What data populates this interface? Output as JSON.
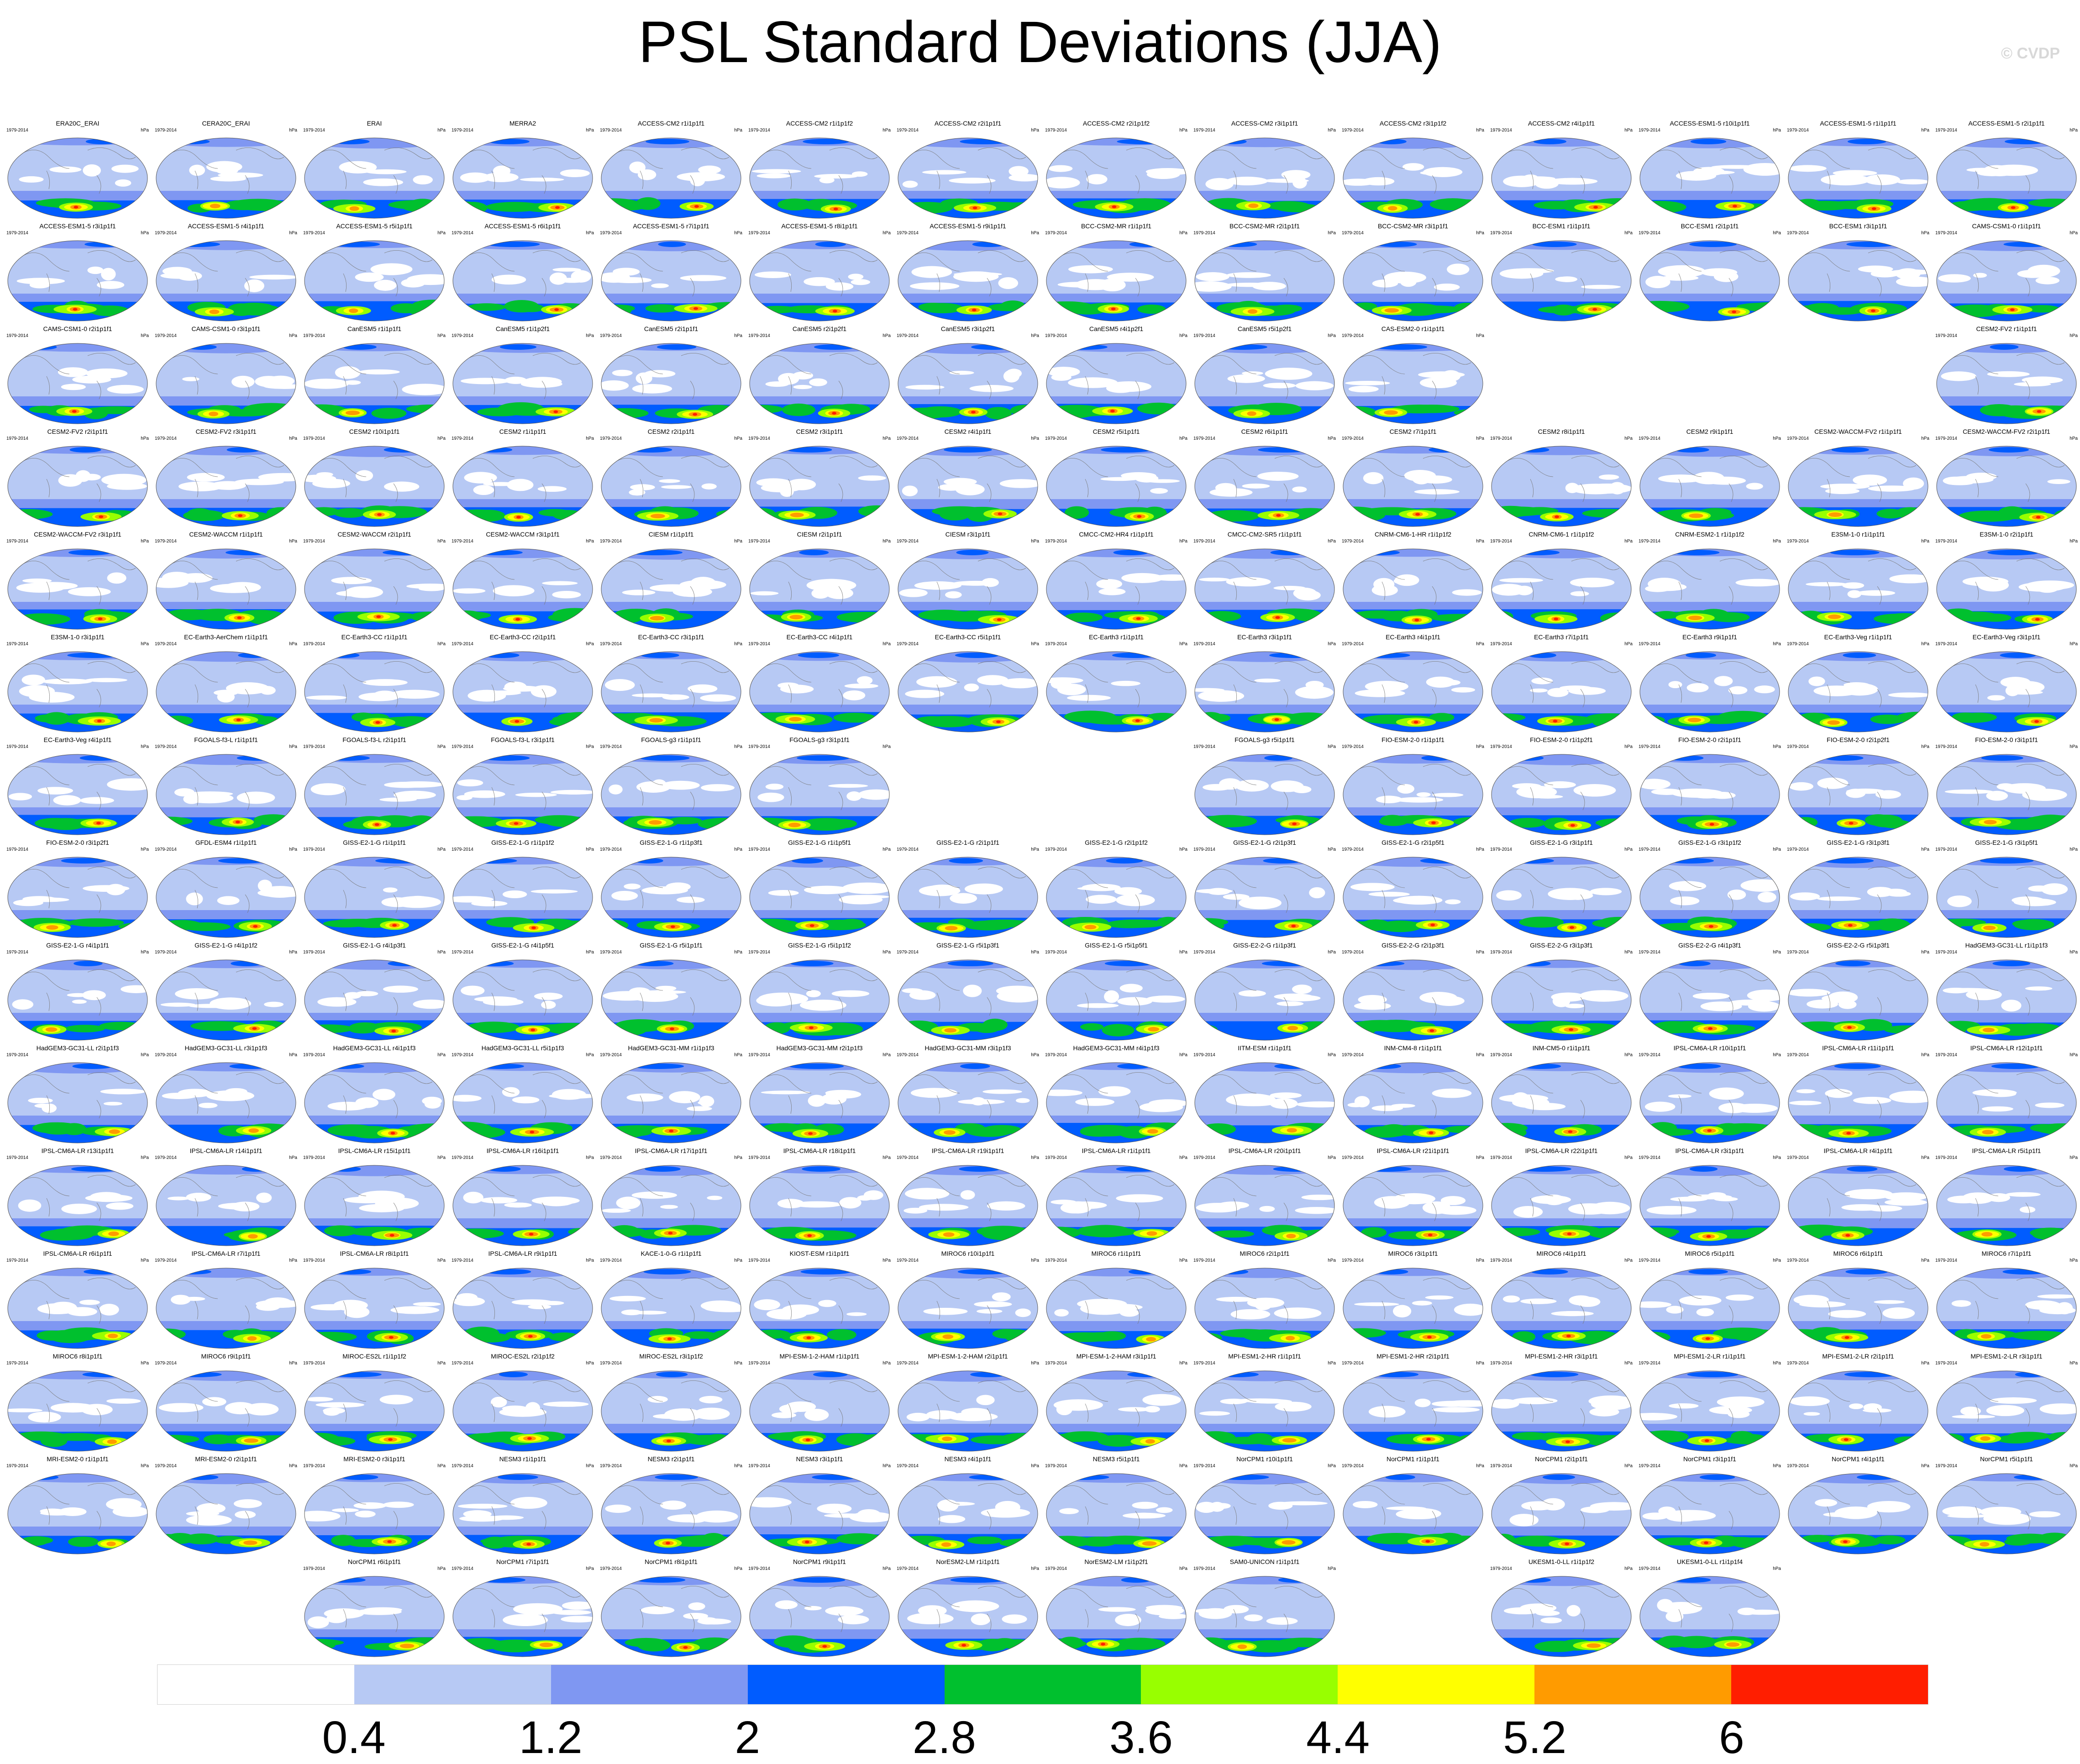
{
  "title": "PSL Standard Deviations (JJA)",
  "copyright": "© CVDP",
  "panel_years": "1979-2014",
  "panel_units": "hPa",
  "panel_rows": [
    [
      "ERA20C_ERAI",
      "CERA20C_ERAI",
      "ERAI",
      "MERRA2",
      "ACCESS-CM2 r1i1p1f1",
      "ACCESS-CM2 r1i1p1f2",
      "ACCESS-CM2 r2i1p1f1",
      "ACCESS-CM2 r2i1p1f2",
      "ACCESS-CM2 r3i1p1f1",
      "ACCESS-CM2 r3i1p1f2",
      "ACCESS-CM2 r4i1p1f1",
      "ACCESS-ESM1-5 r10i1p1f1",
      "ACCESS-ESM1-5 r1i1p1f1",
      "ACCESS-ESM1-5 r2i1p1f1"
    ],
    [
      "ACCESS-ESM1-5 r3i1p1f1",
      "ACCESS-ESM1-5 r4i1p1f1",
      "ACCESS-ESM1-5 r5i1p1f1",
      "ACCESS-ESM1-5 r6i1p1f1",
      "ACCESS-ESM1-5 r7i1p1f1",
      "ACCESS-ESM1-5 r8i1p1f1",
      "ACCESS-ESM1-5 r9i1p1f1",
      "BCC-CSM2-MR r1i1p1f1",
      "BCC-CSM2-MR r2i1p1f1",
      "BCC-CSM2-MR r3i1p1f1",
      "BCC-ESM1 r1i1p1f1",
      "BCC-ESM1 r2i1p1f1",
      "BCC-ESM1 r3i1p1f1",
      "CAMS-CSM1-0 r1i1p1f1"
    ],
    [
      "CAMS-CSM1-0 r2i1p1f1",
      "CAMS-CSM1-0 r3i1p1f1",
      "CanESM5 r1i1p1f1",
      "CanESM5 r1i1p2f1",
      "CanESM5 r2i1p1f1",
      "CanESM5 r2i1p2f1",
      "CanESM5 r3i1p2f1",
      "CanESM5 r4i1p2f1",
      "CanESM5 r5i1p2f1",
      "CAS-ESM2-0 r1i1p1f1",
      "",
      "",
      "",
      "CESM2-FV2 r1i1p1f1"
    ],
    [
      "CESM2-FV2 r2i1p1f1",
      "CESM2-FV2 r3i1p1f1",
      "CESM2 r10i1p1f1",
      "CESM2 r1i1p1f1",
      "CESM2 r2i1p1f1",
      "CESM2 r3i1p1f1",
      "CESM2 r4i1p1f1",
      "CESM2 r5i1p1f1",
      "CESM2 r6i1p1f1",
      "CESM2 r7i1p1f1",
      "CESM2 r8i1p1f1",
      "CESM2 r9i1p1f1",
      "CESM2-WACCM-FV2 r1i1p1f1",
      "CESM2-WACCM-FV2 r2i1p1f1"
    ],
    [
      "CESM2-WACCM-FV2 r3i1p1f1",
      "CESM2-WACCM r1i1p1f1",
      "CESM2-WACCM r2i1p1f1",
      "CESM2-WACCM r3i1p1f1",
      "CIESM r1i1p1f1",
      "CIESM r2i1p1f1",
      "CIESM r3i1p1f1",
      "CMCC-CM2-HR4 r1i1p1f1",
      "CMCC-CM2-SR5 r1i1p1f1",
      "CNRM-CM6-1-HR r1i1p1f2",
      "CNRM-CM6-1 r1i1p1f2",
      "CNRM-ESM2-1 r1i1p1f2",
      "E3SM-1-0 r1i1p1f1",
      "E3SM-1-0 r2i1p1f1"
    ],
    [
      "E3SM-1-0 r3i1p1f1",
      "EC-Earth3-AerChem r1i1p1f1",
      "EC-Earth3-CC r1i1p1f1",
      "EC-Earth3-CC r2i1p1f1",
      "EC-Earth3-CC r3i1p1f1",
      "EC-Earth3-CC r4i1p1f1",
      "EC-Earth3-CC r5i1p1f1",
      "EC-Earth3 r1i1p1f1",
      "EC-Earth3 r3i1p1f1",
      "EC-Earth3 r4i1p1f1",
      "EC-Earth3 r7i1p1f1",
      "EC-Earth3 r9i1p1f1",
      "EC-Earth3-Veg r1i1p1f1",
      "EC-Earth3-Veg r3i1p1f1"
    ],
    [
      "EC-Earth3-Veg r4i1p1f1",
      "FGOALS-f3-L r1i1p1f1",
      "FGOALS-f3-L r2i1p1f1",
      "FGOALS-f3-L r3i1p1f1",
      "FGOALS-g3 r1i1p1f1",
      "FGOALS-g3 r3i1p1f1",
      "",
      "",
      "FGOALS-g3 r5i1p1f1",
      "FIO-ESM-2-0 r1i1p1f1",
      "FIO-ESM-2-0 r1i1p2f1",
      "FIO-ESM-2-0 r2i1p1f1",
      "FIO-ESM-2-0 r2i1p2f1",
      "FIO-ESM-2-0 r3i1p1f1"
    ],
    [
      "FIO-ESM-2-0 r3i1p2f1",
      "GFDL-ESM4 r1i1p1f1",
      "GISS-E2-1-G r1i1p1f1",
      "GISS-E2-1-G r1i1p1f2",
      "GISS-E2-1-G r1i1p3f1",
      "GISS-E2-1-G r1i1p5f1",
      "GISS-E2-1-G r2i1p1f1",
      "GISS-E2-1-G r2i1p1f2",
      "GISS-E2-1-G r2i1p3f1",
      "GISS-E2-1-G r2i1p5f1",
      "GISS-E2-1-G r3i1p1f1",
      "GISS-E2-1-G r3i1p1f2",
      "GISS-E2-1-G r3i1p3f1",
      "GISS-E2-1-G r3i1p5f1"
    ],
    [
      "GISS-E2-1-G r4i1p1f1",
      "GISS-E2-1-G r4i1p1f2",
      "GISS-E2-1-G r4i1p3f1",
      "GISS-E2-1-G r4i1p5f1",
      "GISS-E2-1-G r5i1p1f1",
      "GISS-E2-1-G r5i1p1f2",
      "GISS-E2-1-G r5i1p3f1",
      "GISS-E2-1-G r5i1p5f1",
      "GISS-E2-2-G r1i1p3f1",
      "GISS-E2-2-G r2i1p3f1",
      "GISS-E2-2-G r3i1p3f1",
      "GISS-E2-2-G r4i1p3f1",
      "GISS-E2-2-G r5i1p3f1",
      "HadGEM3-GC31-LL r1i1p1f3"
    ],
    [
      "HadGEM3-GC31-LL r2i1p1f3",
      "HadGEM3-GC31-LL r3i1p1f3",
      "HadGEM3-GC31-LL r4i1p1f3",
      "HadGEM3-GC31-LL r5i1p1f3",
      "HadGEM3-GC31-MM r1i1p1f3",
      "HadGEM3-GC31-MM r2i1p1f3",
      "HadGEM3-GC31-MM r3i1p1f3",
      "HadGEM3-GC31-MM r4i1p1f3",
      "IITM-ESM r1i1p1f1",
      "INM-CM4-8 r1i1p1f1",
      "INM-CM5-0 r1i1p1f1",
      "IPSL-CM6A-LR r10i1p1f1",
      "IPSL-CM6A-LR r11i1p1f1",
      "IPSL-CM6A-LR r12i1p1f1"
    ],
    [
      "IPSL-CM6A-LR r13i1p1f1",
      "IPSL-CM6A-LR r14i1p1f1",
      "IPSL-CM6A-LR r15i1p1f1",
      "IPSL-CM6A-LR r16i1p1f1",
      "IPSL-CM6A-LR r17i1p1f1",
      "IPSL-CM6A-LR r18i1p1f1",
      "IPSL-CM6A-LR r19i1p1f1",
      "IPSL-CM6A-LR r1i1p1f1",
      "IPSL-CM6A-LR r20i1p1f1",
      "IPSL-CM6A-LR r21i1p1f1",
      "IPSL-CM6A-LR r22i1p1f1",
      "IPSL-CM6A-LR r3i1p1f1",
      "IPSL-CM6A-LR r4i1p1f1",
      "IPSL-CM6A-LR r5i1p1f1"
    ],
    [
      "IPSL-CM6A-LR r6i1p1f1",
      "IPSL-CM6A-LR r7i1p1f1",
      "IPSL-CM6A-LR r8i1p1f1",
      "IPSL-CM6A-LR r9i1p1f1",
      "KACE-1-0-G r1i1p1f1",
      "KIOST-ESM r1i1p1f1",
      "MIROC6 r10i1p1f1",
      "MIROC6 r1i1p1f1",
      "MIROC6 r2i1p1f1",
      "MIROC6 r3i1p1f1",
      "MIROC6 r4i1p1f1",
      "MIROC6 r5i1p1f1",
      "MIROC6 r6i1p1f1",
      "MIROC6 r7i1p1f1"
    ],
    [
      "MIROC6 r8i1p1f1",
      "MIROC6 r9i1p1f1",
      "MIROC-ES2L r1i1p1f2",
      "MIROC-ES2L r2i1p1f2",
      "MIROC-ES2L r3i1p1f2",
      "MPI-ESM-1-2-HAM r1i1p1f1",
      "MPI-ESM-1-2-HAM r2i1p1f1",
      "MPI-ESM-1-2-HAM r3i1p1f1",
      "MPI-ESM1-2-HR r1i1p1f1",
      "MPI-ESM1-2-HR r2i1p1f1",
      "MPI-ESM1-2-HR r3i1p1f1",
      "MPI-ESM1-2-LR r1i1p1f1",
      "MPI-ESM1-2-LR r2i1p1f1",
      "MPI-ESM1-2-LR r3i1p1f1"
    ],
    [
      "MRI-ESM2-0 r1i1p1f1",
      "MRI-ESM2-0 r2i1p1f1",
      "MRI-ESM2-0 r3i1p1f1",
      "NESM3 r1i1p1f1",
      "NESM3 r2i1p1f1",
      "NESM3 r3i1p1f1",
      "NESM3 r4i1p1f1",
      "NESM3 r5i1p1f1",
      "NorCPM1 r10i1p1f1",
      "NorCPM1 r1i1p1f1",
      "NorCPM1 r2i1p1f1",
      "NorCPM1 r3i1p1f1",
      "NorCPM1 r4i1p1f1",
      "NorCPM1 r5i1p1f1"
    ],
    [
      "",
      "",
      "NorCPM1 r6i1p1f1",
      "NorCPM1 r7i1p1f1",
      "NorCPM1 r8i1p1f1",
      "NorCPM1 r9i1p1f1",
      "NorESM2-LM r1i1p1f1",
      "NorESM2-LM r1i1p2f1",
      "SAM0-UNICON r1i1p1f1",
      "",
      "UKESM1-0-LL r1i1p1f2",
      "UKESM1-0-LL r1i1p1f4",
      "",
      ""
    ]
  ],
  "colorbar": {
    "colors": [
      "#ffffff",
      "#b7c9f4",
      "#7f97f2",
      "#005cff",
      "#00c02e",
      "#98ff00",
      "#ffff00",
      "#ff9b00",
      "#ff1e00"
    ],
    "labels": [
      "0.4",
      "1.2",
      "2",
      "2.8",
      "3.6",
      "4.4",
      "5.2",
      "6"
    ]
  },
  "palette": {
    "ocean_base": "#b7c9f4",
    "land_white": "#ffffff",
    "band_mid": "#7f97f2",
    "band_blue": "#005cff",
    "band_green": "#00c02e",
    "band_lime": "#98ff00",
    "band_yellow": "#ffff00",
    "band_orange": "#ff9b00",
    "band_red": "#ff1e00"
  }
}
